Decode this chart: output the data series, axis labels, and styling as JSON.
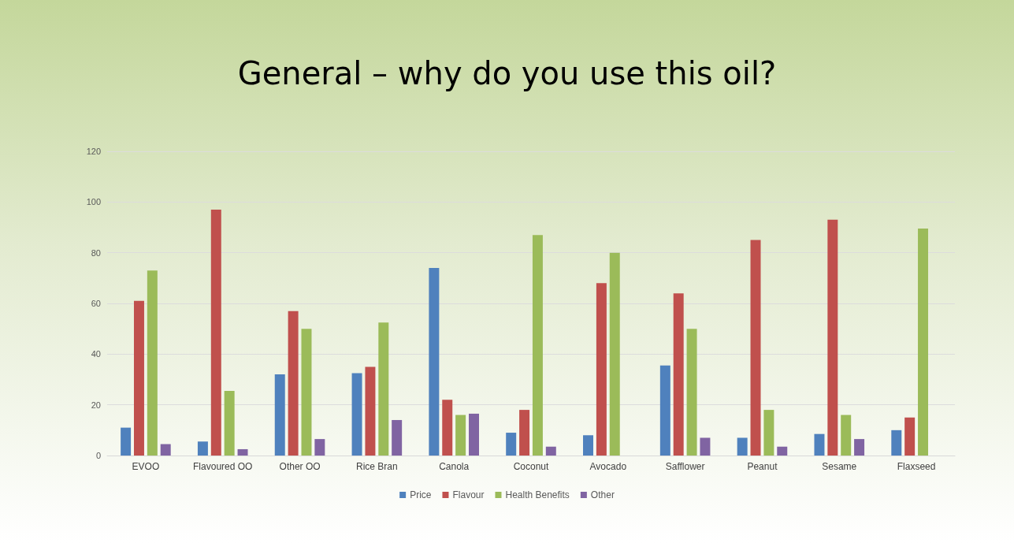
{
  "chart_data": {
    "type": "bar",
    "title": "General – why do you use this oil?",
    "categories": [
      "EVOO",
      "Flavoured OO",
      "Other OO",
      "Rice Bran",
      "Canola",
      "Coconut",
      "Avocado",
      "Safflower",
      "Peanut",
      "Sesame",
      "Flaxseed"
    ],
    "series": [
      {
        "name": "Price",
        "color": "#4f81bd",
        "values": [
          11,
          5.5,
          32,
          32.5,
          74,
          9,
          8,
          35.5,
          7,
          8.5,
          10
        ]
      },
      {
        "name": "Flavour",
        "color": "#c0504d",
        "values": [
          61,
          97,
          57,
          35,
          22,
          18,
          68,
          64,
          85,
          93,
          15
        ]
      },
      {
        "name": "Health Benefits",
        "color": "#9bbb59",
        "values": [
          73,
          25.5,
          50,
          52.5,
          16,
          87,
          80,
          50,
          18,
          16,
          89.5
        ]
      },
      {
        "name": "Other",
        "color": "#8064a2",
        "values": [
          4.5,
          2.5,
          6.5,
          14,
          16.5,
          3.5,
          null,
          7,
          3.5,
          6.5,
          null
        ]
      }
    ],
    "ylim": [
      0,
      120
    ],
    "yticks": [
      0,
      20,
      40,
      60,
      80,
      100,
      120
    ],
    "grid": "y",
    "legend": "bottom"
  }
}
